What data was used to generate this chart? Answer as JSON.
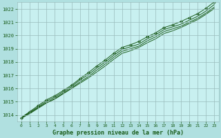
{
  "title": "Graphe pression niveau de la mer (hPa)",
  "fig_bg_color": "#b0e0e0",
  "plot_bg_color": "#c8f0f0",
  "grid_color": "#99bbbb",
  "line_color": "#1a5c1a",
  "marker_color": "#1a5c1a",
  "x_values": [
    0,
    1,
    2,
    3,
    4,
    5,
    6,
    7,
    8,
    9,
    10,
    11,
    12,
    13,
    14,
    15,
    16,
    17,
    18,
    19,
    20,
    21,
    22,
    23
  ],
  "line1": [
    1013.8,
    1014.2,
    1014.6,
    1015.05,
    1015.35,
    1015.75,
    1016.15,
    1016.65,
    1017.05,
    1017.55,
    1018.0,
    1018.5,
    1018.95,
    1019.15,
    1019.35,
    1019.75,
    1020.05,
    1020.45,
    1020.65,
    1020.85,
    1021.15,
    1021.45,
    1021.85,
    1022.35
  ],
  "line2": [
    1013.75,
    1014.15,
    1014.55,
    1014.95,
    1015.25,
    1015.65,
    1016.05,
    1016.5,
    1016.9,
    1017.4,
    1017.85,
    1018.35,
    1018.8,
    1019.0,
    1019.2,
    1019.6,
    1019.9,
    1020.3,
    1020.5,
    1020.7,
    1021.0,
    1021.3,
    1021.7,
    1022.15
  ],
  "line3": [
    1013.8,
    1014.25,
    1014.7,
    1015.15,
    1015.45,
    1015.85,
    1016.25,
    1016.75,
    1017.2,
    1017.7,
    1018.15,
    1018.65,
    1019.1,
    1019.3,
    1019.55,
    1019.9,
    1020.2,
    1020.6,
    1020.8,
    1021.05,
    1021.35,
    1021.65,
    1022.05,
    1022.55
  ],
  "line4": [
    1013.75,
    1014.1,
    1014.5,
    1014.9,
    1015.2,
    1015.6,
    1016.0,
    1016.4,
    1016.8,
    1017.25,
    1017.7,
    1018.2,
    1018.65,
    1018.85,
    1019.1,
    1019.45,
    1019.75,
    1020.15,
    1020.35,
    1020.6,
    1020.9,
    1021.2,
    1021.6,
    1022.05
  ],
  "ylim": [
    1013.5,
    1022.5
  ],
  "yticks": [
    1014,
    1015,
    1016,
    1017,
    1018,
    1019,
    1020,
    1021,
    1022
  ],
  "xlim": [
    -0.5,
    23.5
  ],
  "xticks": [
    0,
    1,
    2,
    3,
    4,
    5,
    6,
    7,
    8,
    9,
    10,
    11,
    12,
    13,
    14,
    15,
    16,
    17,
    18,
    19,
    20,
    21,
    22,
    23
  ]
}
